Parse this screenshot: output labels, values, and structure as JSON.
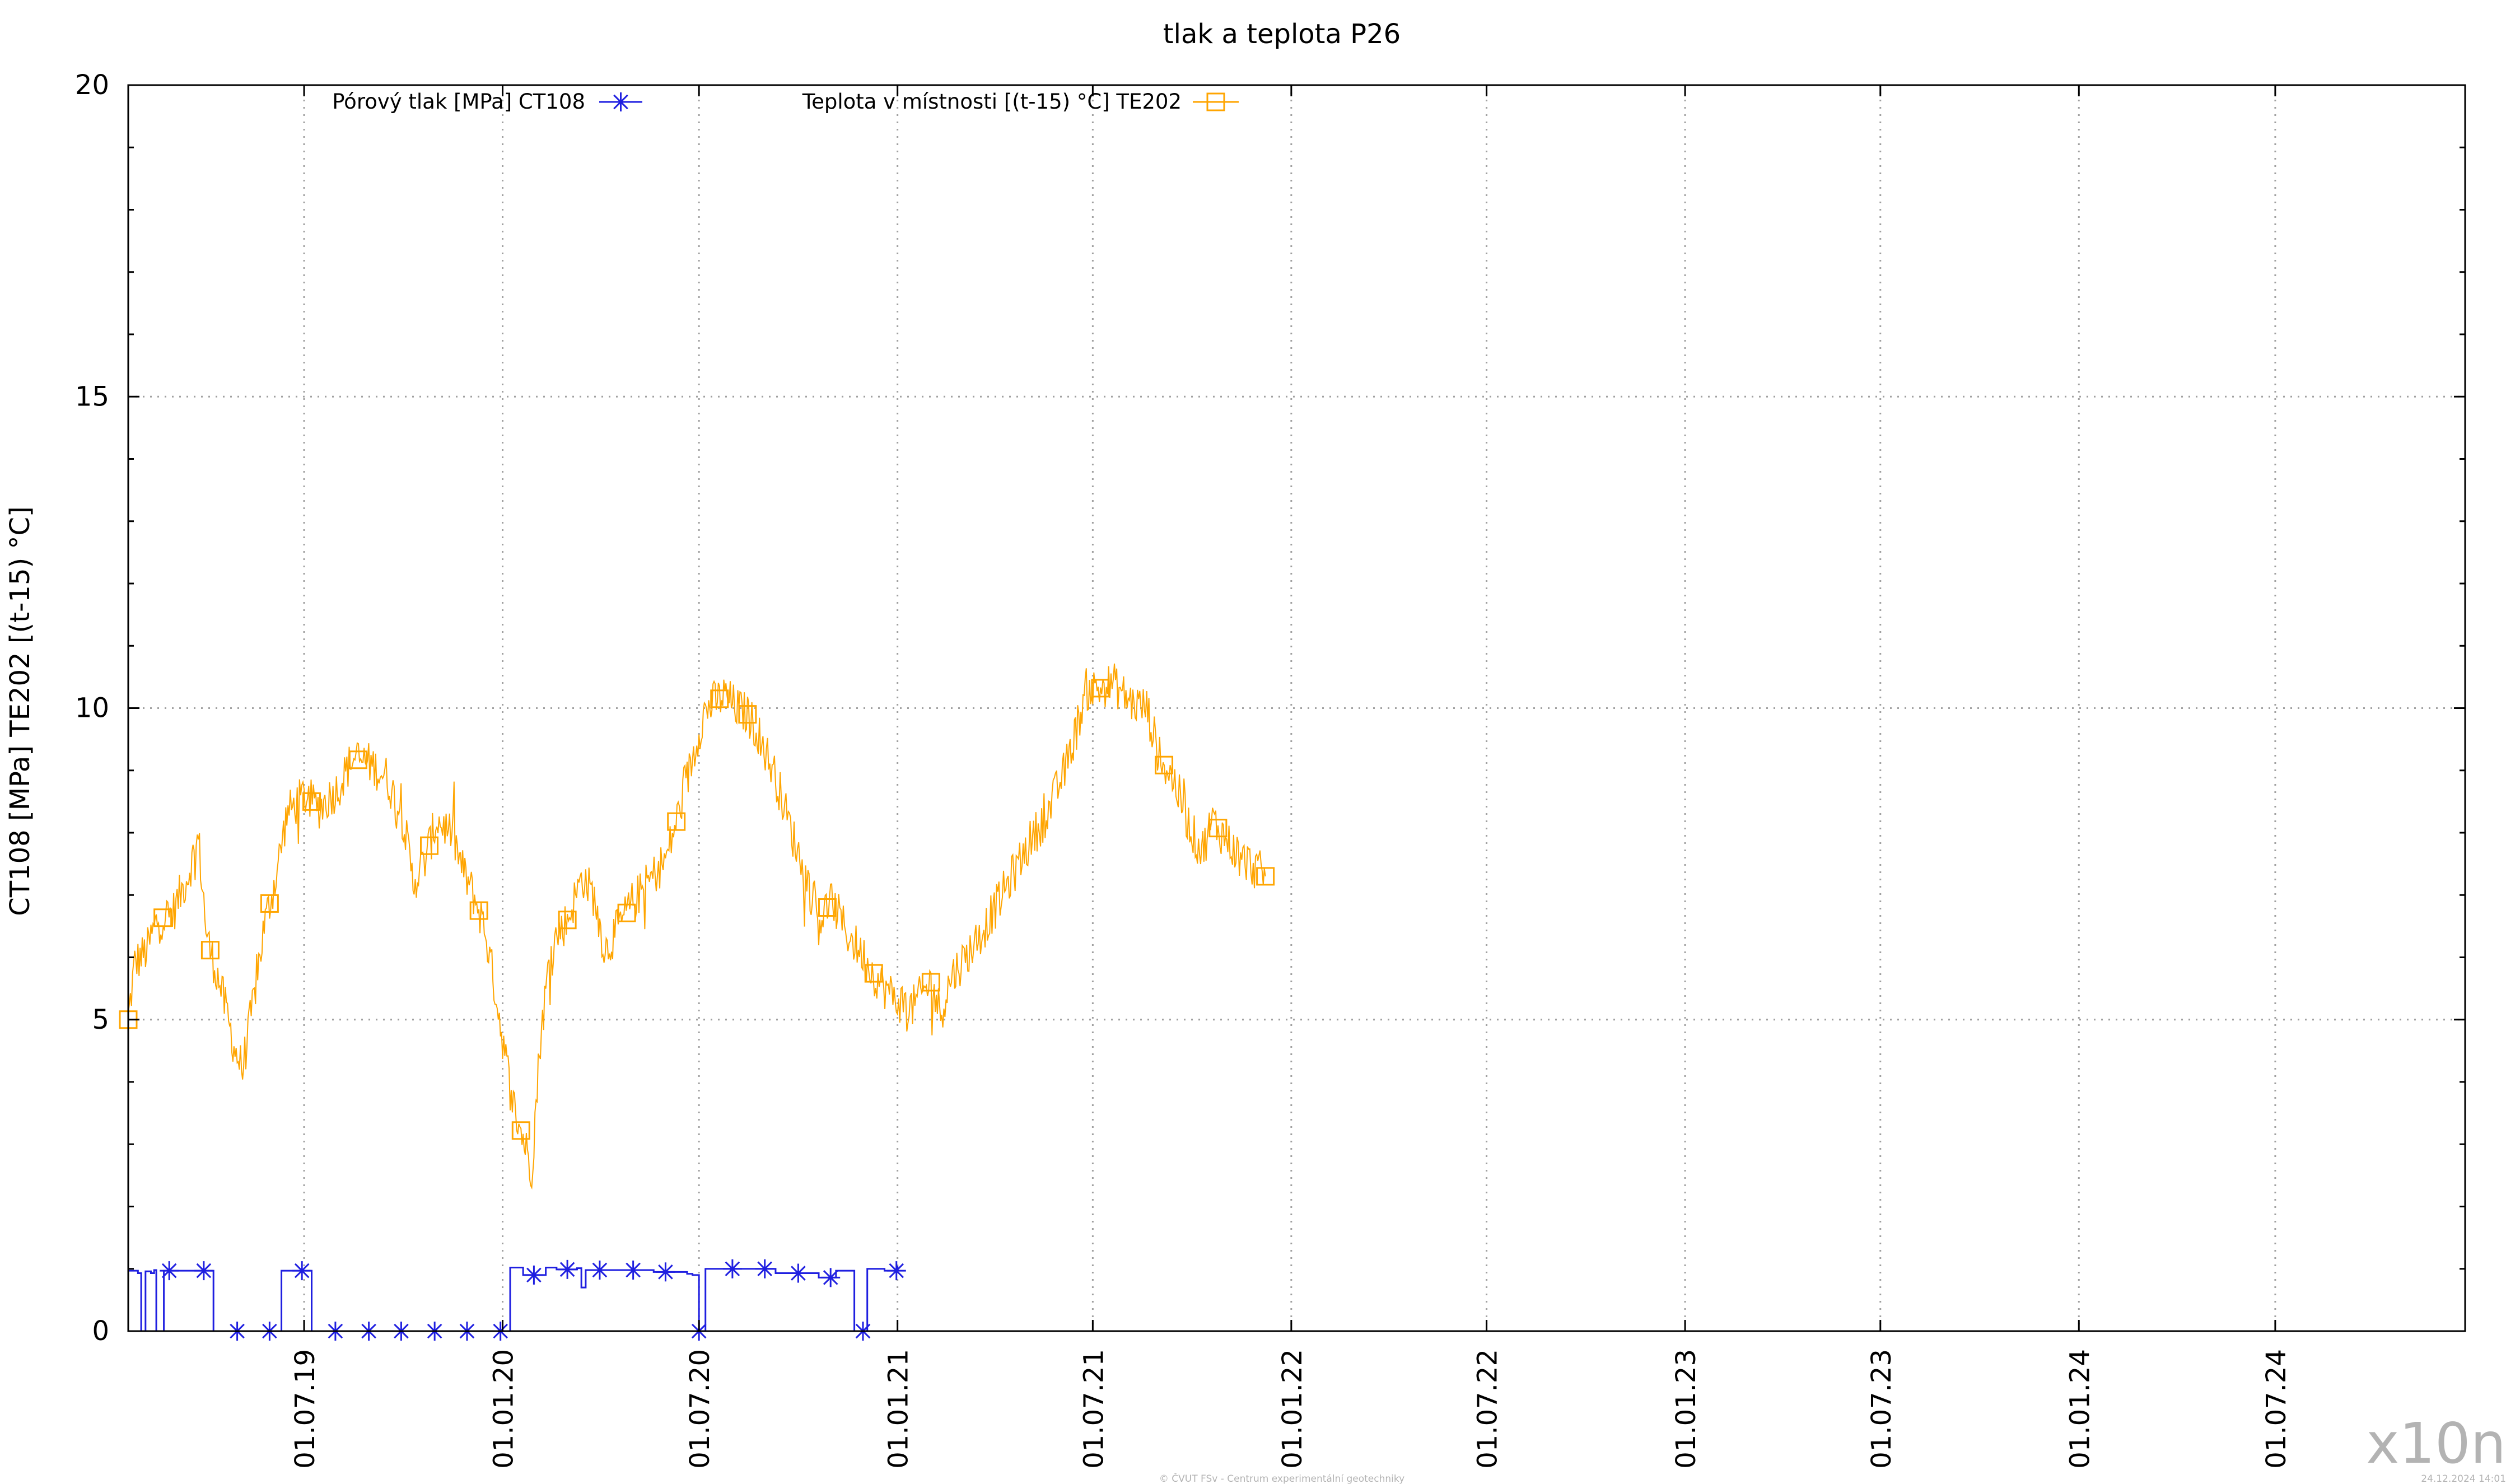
{
  "chart_data": {
    "type": "line",
    "title": "tlak a teplota P26",
    "ylabel": "CT108 [MPa] TE202 [(t-15) °C]",
    "xlabel": "",
    "ylim": [
      0,
      20
    ],
    "y_ticks": [
      "0",
      "5",
      "10",
      "15",
      "20"
    ],
    "x_range": [
      "2019-01-19",
      "2024-12-24"
    ],
    "x_ticks": [
      {
        "date": "2019-07-01",
        "label": "01.07.19"
      },
      {
        "date": "2020-01-01",
        "label": "01.01.20"
      },
      {
        "date": "2020-07-01",
        "label": "01.07.20"
      },
      {
        "date": "2021-01-01",
        "label": "01.01.21"
      },
      {
        "date": "2021-07-01",
        "label": "01.07.21"
      },
      {
        "date": "2022-01-01",
        "label": "01.01.22"
      },
      {
        "date": "2022-07-01",
        "label": "01.07.22"
      },
      {
        "date": "2023-01-01",
        "label": "01.01.23"
      },
      {
        "date": "2023-07-01",
        "label": "01.07.23"
      },
      {
        "date": "2024-01-01",
        "label": "01.01.24"
      },
      {
        "date": "2024-07-01",
        "label": "01.07.24"
      }
    ],
    "grid": true,
    "legend_position": "top",
    "series": [
      {
        "name": "Pórový tlak [MPa] CT108",
        "color": "#1f1fe0",
        "marker": "star",
        "step": true,
        "points": [
          [
            "2019-01-19",
            0.97
          ],
          [
            "2019-01-28",
            0.93
          ],
          [
            "2019-01-31",
            0.0
          ],
          [
            "2019-02-02",
            0.0
          ],
          [
            "2019-02-04",
            0.96
          ],
          [
            "2019-02-09",
            0.93
          ],
          [
            "2019-02-12",
            0.98
          ],
          [
            "2019-02-14",
            0.0
          ],
          [
            "2019-02-18",
            0.0
          ],
          [
            "2019-02-21",
            0.97
          ],
          [
            "2019-03-10",
            0.97
          ],
          [
            "2019-04-05",
            0.97
          ],
          [
            "2019-04-08",
            0.0
          ],
          [
            "2019-05-01",
            0.0
          ],
          [
            "2019-06-01",
            0.0
          ],
          [
            "2019-06-08",
            0.0
          ],
          [
            "2019-06-10",
            0.97
          ],
          [
            "2019-06-25",
            0.97
          ],
          [
            "2019-07-05",
            0.97
          ],
          [
            "2019-07-08",
            0.0
          ],
          [
            "2019-08-01",
            0.0
          ],
          [
            "2019-09-01",
            0.0
          ],
          [
            "2019-10-01",
            0.0
          ],
          [
            "2019-11-01",
            0.0
          ],
          [
            "2019-12-01",
            0.0
          ],
          [
            "2020-01-01",
            0.0
          ],
          [
            "2020-01-08",
            1.02
          ],
          [
            "2020-01-20",
            0.9
          ],
          [
            "2020-02-10",
            1.02
          ],
          [
            "2020-02-20",
            0.99
          ],
          [
            "2020-03-10",
            1.01
          ],
          [
            "2020-03-14",
            0.7
          ],
          [
            "2020-03-18",
            0.98
          ],
          [
            "2020-04-20",
            0.98
          ],
          [
            "2020-05-20",
            0.95
          ],
          [
            "2020-06-20",
            0.92
          ],
          [
            "2020-06-25",
            0.9
          ],
          [
            "2020-06-28",
            0.9
          ],
          [
            "2020-07-01",
            0.0
          ],
          [
            "2020-07-04",
            0.0
          ],
          [
            "2020-07-07",
            1.0
          ],
          [
            "2020-08-10",
            1.0
          ],
          [
            "2020-09-10",
            0.93
          ],
          [
            "2020-10-20",
            0.86
          ],
          [
            "2020-11-05",
            0.97
          ],
          [
            "2020-11-20",
            0.97
          ],
          [
            "2020-11-22",
            0.0
          ],
          [
            "2020-12-02",
            0.0
          ],
          [
            "2020-12-04",
            1.0
          ],
          [
            "2020-12-20",
            0.97
          ],
          [
            "2021-01-01",
            1.05
          ]
        ],
        "markers": [
          "2019-02-26",
          "2019-03-30",
          "2019-04-30",
          "2019-05-30",
          "2019-06-29",
          "2019-07-30",
          "2019-08-30",
          "2019-09-29",
          "2019-10-30",
          "2019-11-29",
          "2019-12-30",
          "2020-01-30",
          "2020-03-01",
          "2020-03-31",
          "2020-05-01",
          "2020-05-31",
          "2020-07-01",
          "2020-08-01",
          "2020-08-31",
          "2020-10-01",
          "2020-10-31",
          "2020-11-30",
          "2020-12-31"
        ]
      },
      {
        "name": "Teplota v místnosti [(t-15) °C] TE202",
        "color": "#ffa500",
        "marker": "square",
        "noise": 0.35,
        "points": [
          [
            "2019-01-19",
            5.0
          ],
          [
            "2019-01-25",
            5.9
          ],
          [
            "2019-02-05",
            6.1
          ],
          [
            "2019-02-15",
            6.6
          ],
          [
            "2019-03-01",
            6.7
          ],
          [
            "2019-03-15",
            7.3
          ],
          [
            "2019-03-25",
            7.9
          ],
          [
            "2019-04-02",
            6.3
          ],
          [
            "2019-04-15",
            5.5
          ],
          [
            "2019-04-28",
            4.5
          ],
          [
            "2019-05-05",
            4.2
          ],
          [
            "2019-05-15",
            5.3
          ],
          [
            "2019-05-25",
            6.5
          ],
          [
            "2019-06-05",
            7.3
          ],
          [
            "2019-06-15",
            8.3
          ],
          [
            "2019-07-01",
            8.6
          ],
          [
            "2019-07-15",
            8.4
          ],
          [
            "2019-08-01",
            8.7
          ],
          [
            "2019-08-15",
            9.2
          ],
          [
            "2019-09-01",
            9.1
          ],
          [
            "2019-09-15",
            8.9
          ],
          [
            "2019-10-01",
            8.2
          ],
          [
            "2019-10-10",
            7.2
          ],
          [
            "2019-10-20",
            7.5
          ],
          [
            "2019-11-01",
            8.2
          ],
          [
            "2019-11-15",
            8.0
          ],
          [
            "2019-11-25",
            7.4
          ],
          [
            "2019-12-05",
            7.0
          ],
          [
            "2019-12-15",
            6.5
          ],
          [
            "2019-12-25",
            5.5
          ],
          [
            "2020-01-01",
            4.7
          ],
          [
            "2020-01-10",
            3.7
          ],
          [
            "2020-01-20",
            3.1
          ],
          [
            "2020-01-28",
            2.6
          ],
          [
            "2020-02-05",
            4.7
          ],
          [
            "2020-02-15",
            6.2
          ],
          [
            "2020-03-01",
            6.6
          ],
          [
            "2020-03-15",
            7.3
          ],
          [
            "2020-03-25",
            7.0
          ],
          [
            "2020-04-05",
            6.1
          ],
          [
            "2020-04-15",
            6.4
          ],
          [
            "2020-05-01",
            6.9
          ],
          [
            "2020-05-15",
            7.2
          ],
          [
            "2020-06-01",
            7.6
          ],
          [
            "2020-06-15",
            8.5
          ],
          [
            "2020-06-25",
            9.2
          ],
          [
            "2020-07-05",
            9.9
          ],
          [
            "2020-07-15",
            10.1
          ],
          [
            "2020-07-25",
            10.2
          ],
          [
            "2020-08-05",
            10.0
          ],
          [
            "2020-08-15",
            9.9
          ],
          [
            "2020-08-25",
            9.6
          ],
          [
            "2020-09-10",
            8.9
          ],
          [
            "2020-09-25",
            8.0
          ],
          [
            "2020-10-10",
            7.2
          ],
          [
            "2020-10-20",
            6.6
          ],
          [
            "2020-11-01",
            6.9
          ],
          [
            "2020-11-15",
            6.4
          ],
          [
            "2020-12-01",
            6.0
          ],
          [
            "2020-12-15",
            5.6
          ],
          [
            "2021-01-01",
            5.3
          ],
          [
            "2021-01-15",
            5.2
          ],
          [
            "2021-02-01",
            5.6
          ],
          [
            "2021-02-10",
            5.1
          ],
          [
            "2021-02-20",
            5.7
          ],
          [
            "2021-03-05",
            6.0
          ],
          [
            "2021-03-20",
            6.4
          ],
          [
            "2021-04-05",
            6.9
          ],
          [
            "2021-04-20",
            7.4
          ],
          [
            "2021-05-05",
            7.9
          ],
          [
            "2021-05-20",
            8.3
          ],
          [
            "2021-06-05",
            9.0
          ],
          [
            "2021-06-15",
            9.6
          ],
          [
            "2021-06-25",
            10.3
          ],
          [
            "2021-07-05",
            10.3
          ],
          [
            "2021-07-20",
            10.4
          ],
          [
            "2021-08-05",
            10.1
          ],
          [
            "2021-08-20",
            10.0
          ],
          [
            "2021-09-01",
            9.2
          ],
          [
            "2021-09-15",
            8.8
          ],
          [
            "2021-10-01",
            8.0
          ],
          [
            "2021-10-10",
            7.7
          ],
          [
            "2021-10-20",
            8.2
          ],
          [
            "2021-11-01",
            7.9
          ],
          [
            "2021-11-15",
            7.6
          ],
          [
            "2021-12-01",
            7.4
          ],
          [
            "2021-12-08",
            7.3
          ]
        ],
        "markers": [
          "2019-01-19",
          "2019-02-20",
          "2019-04-05",
          "2019-05-30",
          "2019-07-08",
          "2019-08-20",
          "2019-10-25",
          "2019-12-10",
          "2020-01-18",
          "2020-03-01",
          "2020-04-25",
          "2020-06-10",
          "2020-07-20",
          "2020-08-15",
          "2020-10-28",
          "2020-12-10",
          "2021-02-01",
          "2021-07-08",
          "2021-09-05",
          "2021-10-25",
          "2021-12-08"
        ]
      }
    ]
  },
  "watermark": "x10n",
  "footer_left": "© ČVUT FSv - Centrum experimentální geotechniky",
  "footer_right": "24.12.2024 14:01"
}
